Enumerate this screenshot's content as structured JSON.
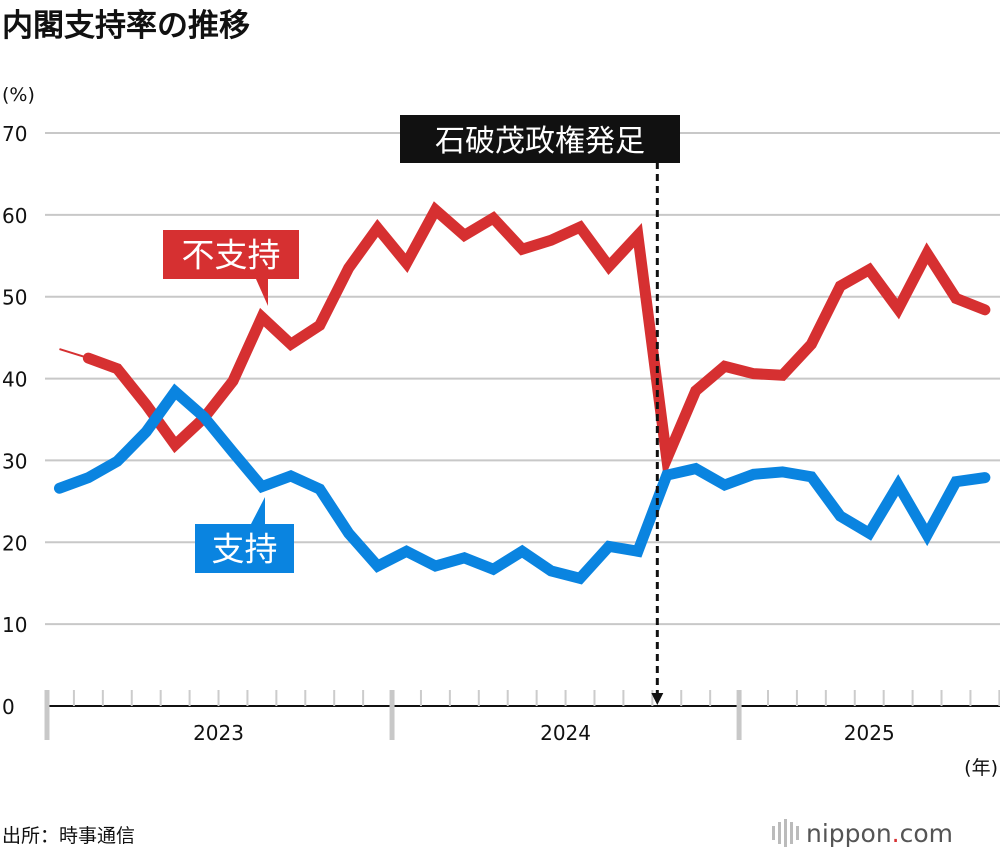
{
  "chart_data": {
    "type": "line",
    "title": "内閣支持率の推移",
    "ylabel": "(%)",
    "xlabel": "(年)",
    "ylim": [
      0,
      70
    ],
    "yticks": [
      0,
      10,
      20,
      30,
      40,
      50,
      60,
      70
    ],
    "grid": true,
    "x_start": "2023-01",
    "x_end": "2025-09",
    "year_labels": [
      "2023",
      "2024",
      "2025"
    ],
    "x": [
      "2023-01",
      "2023-02",
      "2023-03",
      "2023-04",
      "2023-05",
      "2023-06",
      "2023-07",
      "2023-08",
      "2023-09",
      "2023-10",
      "2023-11",
      "2023-12",
      "2024-01",
      "2024-02",
      "2024-03",
      "2024-04",
      "2024-05",
      "2024-06",
      "2024-07",
      "2024-08",
      "2024-09",
      "2024-10",
      "2024-11",
      "2024-12",
      "2025-01",
      "2025-02",
      "2025-03",
      "2025-04",
      "2025-05",
      "2025-06",
      "2025-07",
      "2025-08",
      "2025-09"
    ],
    "series": [
      {
        "name": "不支持",
        "color": "#d63031",
        "values": [
          43.6,
          42.5,
          41.2,
          36.8,
          31.9,
          35.2,
          39.7,
          47.5,
          44.2,
          46.5,
          53.5,
          58.4,
          54.1,
          60.6,
          57.5,
          59.6,
          55.8,
          56.9,
          58.5,
          53.7,
          57.5,
          30.2,
          38.5,
          41.5,
          40.6,
          40.4,
          44.2,
          51.3,
          53.3,
          48.5,
          55.3,
          49.8,
          48.4
        ]
      },
      {
        "name": "支持",
        "color": "#0a84e0",
        "values": [
          26.6,
          27.9,
          29.9,
          33.5,
          38.4,
          35.3,
          31.0,
          26.8,
          28.1,
          26.5,
          21.1,
          17.1,
          18.9,
          17.1,
          18.1,
          16.7,
          18.9,
          16.5,
          15.6,
          19.5,
          18.9,
          28.2,
          29.0,
          27.0,
          28.3,
          28.6,
          28.0,
          23.2,
          21.1,
          27.0,
          20.9,
          27.4,
          27.9
        ]
      }
    ],
    "annotations": [
      {
        "text": "石破茂政権発足",
        "x": "2024-10"
      }
    ]
  },
  "source": "出所：時事通信",
  "logo": "nippon.com"
}
